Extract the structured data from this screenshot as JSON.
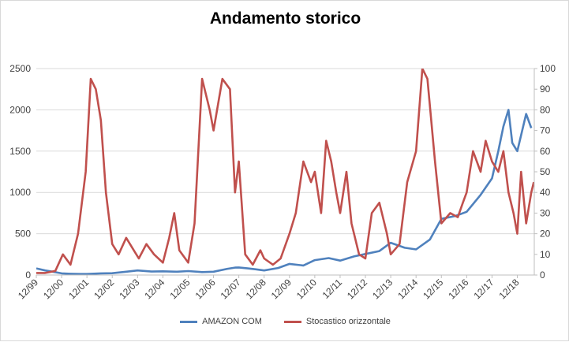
{
  "chart_data": {
    "type": "line",
    "title": "Andamento storico",
    "x_tick_labels": [
      "12/99",
      "12/00",
      "12/01",
      "12/02",
      "12/03",
      "12/04",
      "12/05",
      "12/06",
      "12/07",
      "12/08",
      "12/09",
      "12/10",
      "12/11",
      "12/12",
      "12/13",
      "12/14",
      "12/15",
      "12/16",
      "12/17",
      "12/18"
    ],
    "y_left": {
      "ylim": [
        0,
        2500
      ],
      "ticks": [
        "0",
        "500",
        "1000",
        "1500",
        "2000",
        "2500"
      ]
    },
    "y_right": {
      "ylim": [
        0,
        100
      ],
      "ticks": [
        "0",
        "10",
        "20",
        "30",
        "40",
        "50",
        "60",
        "70",
        "80",
        "90",
        "100"
      ]
    },
    "grid": true,
    "legend_position": "bottom",
    "series": [
      {
        "name": "AMAZON COM",
        "axis": "left",
        "color": "#4f81bd",
        "x": [
          1999.95,
          2000.3,
          2000.6,
          2000.95,
          2001.3,
          2001.7,
          2001.95,
          2002.5,
          2002.95,
          2003.5,
          2003.95,
          2004.5,
          2004.95,
          2005.5,
          2005.95,
          2006.5,
          2006.95,
          2007.5,
          2007.8,
          2007.95,
          2008.3,
          2008.6,
          2008.95,
          2009.5,
          2009.95,
          2010.5,
          2010.95,
          2011.5,
          2011.95,
          2012.5,
          2012.95,
          2013.5,
          2013.95,
          2014.5,
          2014.95,
          2015.5,
          2015.95,
          2016.5,
          2016.95,
          2017.5,
          2017.95,
          2018.2,
          2018.4,
          2018.6,
          2018.75,
          2018.95,
          2019.3,
          2019.5
        ],
        "values": [
          80,
          55,
          40,
          20,
          15,
          12,
          12,
          20,
          22,
          40,
          55,
          42,
          45,
          40,
          48,
          35,
          40,
          75,
          90,
          92,
          80,
          70,
          55,
          85,
          135,
          115,
          180,
          205,
          175,
          225,
          255,
          290,
          390,
          330,
          310,
          430,
          680,
          715,
          765,
          970,
          1170,
          1500,
          1800,
          2000,
          1600,
          1500,
          1950,
          1780
        ]
      },
      {
        "name": "Stocastico orizzontale",
        "axis": "right",
        "color": "#c0504d",
        "x": [
          1999.95,
          2000.3,
          2000.7,
          2001.0,
          2001.3,
          2001.6,
          2001.9,
          2002.1,
          2002.3,
          2002.5,
          2002.7,
          2002.95,
          2003.2,
          2003.5,
          2003.8,
          2004.0,
          2004.3,
          2004.6,
          2004.95,
          2005.2,
          2005.4,
          2005.6,
          2005.95,
          2006.2,
          2006.5,
          2006.8,
          2006.95,
          2007.3,
          2007.6,
          2007.8,
          2007.95,
          2008.2,
          2008.5,
          2008.8,
          2008.95,
          2009.3,
          2009.6,
          2009.95,
          2010.2,
          2010.5,
          2010.8,
          2010.95,
          2011.2,
          2011.4,
          2011.6,
          2011.8,
          2011.95,
          2012.2,
          2012.4,
          2012.7,
          2012.95,
          2013.2,
          2013.5,
          2013.8,
          2013.95,
          2014.3,
          2014.6,
          2014.95,
          2015.2,
          2015.4,
          2015.7,
          2015.95,
          2016.3,
          2016.6,
          2016.8,
          2016.95,
          2017.2,
          2017.5,
          2017.7,
          2017.95,
          2018.2,
          2018.4,
          2018.6,
          2018.8,
          2018.95,
          2019.1,
          2019.3,
          2019.5,
          2019.6
        ],
        "values": [
          1,
          1,
          2,
          10,
          5,
          20,
          50,
          95,
          90,
          75,
          40,
          15,
          10,
          18,
          12,
          8,
          15,
          10,
          6,
          18,
          30,
          12,
          6,
          25,
          95,
          80,
          70,
          95,
          90,
          40,
          55,
          10,
          5,
          12,
          8,
          5,
          8,
          20,
          30,
          55,
          45,
          50,
          30,
          65,
          55,
          40,
          30,
          50,
          25,
          10,
          8,
          30,
          35,
          20,
          10,
          15,
          45,
          60,
          100,
          95,
          55,
          25,
          30,
          28,
          35,
          40,
          60,
          50,
          65,
          55,
          50,
          60,
          40,
          30,
          20,
          50,
          25,
          40,
          45
        ]
      }
    ]
  }
}
